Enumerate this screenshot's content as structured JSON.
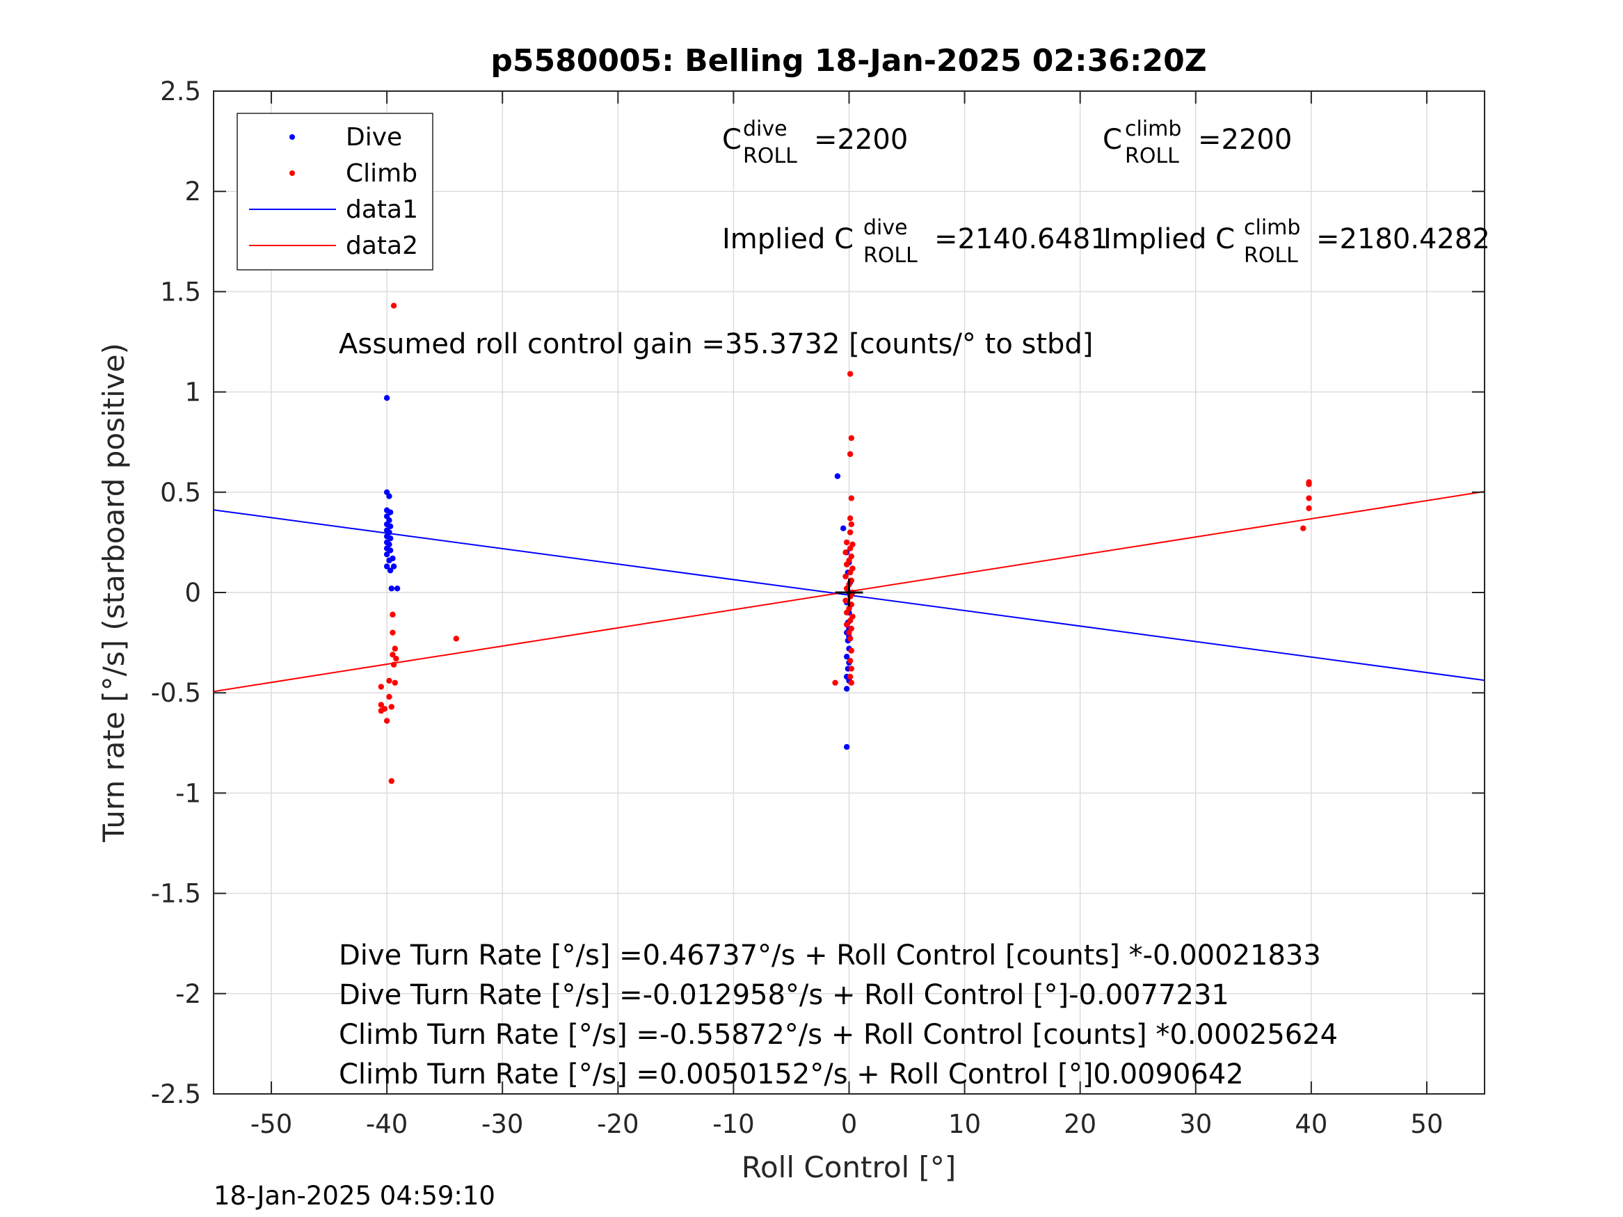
{
  "chart_data": {
    "type": "scatter",
    "title": "p5580005: Belling 18-Jan-2025 02:36:20Z",
    "xlabel": "Roll Control [°]",
    "ylabel": "Turn rate [°/s] (starboard positive)",
    "xlim": [
      -55,
      55
    ],
    "ylim": [
      -2.5,
      2.5
    ],
    "xticks": [
      -50,
      -40,
      -30,
      -20,
      -10,
      0,
      10,
      20,
      30,
      40,
      50
    ],
    "yticks": [
      2.5,
      2,
      1.5,
      1,
      0.5,
      0,
      -0.5,
      -1,
      -1.5,
      -2,
      -2.5
    ],
    "xtick_labels": [
      "-50",
      "-40",
      "-30",
      "-20",
      "-10",
      "0",
      "10",
      "20",
      "30",
      "40",
      "50"
    ],
    "ytick_labels": [
      "2.5",
      "2",
      "1.5",
      "1",
      "0.5",
      "0",
      "-0.5",
      "-1",
      "-1.5",
      "-2",
      "-2.5"
    ],
    "grid": true,
    "legend_position": "top-left",
    "series": [
      {
        "name": "Dive",
        "kind": "points",
        "color": "#0000ff",
        "points": [
          [
            -40,
            0.97
          ],
          [
            -40,
            0.5
          ],
          [
            -39.8,
            0.48
          ],
          [
            -40,
            0.41
          ],
          [
            -39.7,
            0.4
          ],
          [
            -40,
            0.38
          ],
          [
            -39.8,
            0.36
          ],
          [
            -40,
            0.34
          ],
          [
            -39.7,
            0.33
          ],
          [
            -40,
            0.31
          ],
          [
            -39.8,
            0.3
          ],
          [
            -40,
            0.28
          ],
          [
            -39.7,
            0.27
          ],
          [
            -40,
            0.25
          ],
          [
            -39.8,
            0.24
          ],
          [
            -40,
            0.22
          ],
          [
            -39.7,
            0.21
          ],
          [
            -40,
            0.19
          ],
          [
            -39.8,
            0.16
          ],
          [
            -40,
            0.13
          ],
          [
            -39.7,
            0.11
          ],
          [
            -39.5,
            0.17
          ],
          [
            -39.4,
            0.13
          ],
          [
            -39.6,
            0.02
          ],
          [
            -39.1,
            0.02
          ],
          [
            -1,
            0.58
          ],
          [
            -0.5,
            0.32
          ],
          [
            -0.2,
            0.2
          ],
          [
            0,
            0.15
          ],
          [
            -0.1,
            0.1
          ],
          [
            0.1,
            0.05
          ],
          [
            0,
            0.0
          ],
          [
            -0.2,
            -0.05
          ],
          [
            0,
            -0.1
          ],
          [
            -0.1,
            -0.15
          ],
          [
            0,
            -0.18
          ],
          [
            -0.2,
            -0.2
          ],
          [
            0,
            -0.22
          ],
          [
            -0.1,
            -0.24
          ],
          [
            0,
            -0.28
          ],
          [
            -0.2,
            -0.32
          ],
          [
            0,
            -0.35
          ],
          [
            -0.1,
            -0.38
          ],
          [
            -0.2,
            -0.42
          ],
          [
            0,
            -0.44
          ],
          [
            -0.2,
            -0.48
          ],
          [
            -0.2,
            -0.77
          ]
        ]
      },
      {
        "name": "Climb",
        "kind": "points",
        "color": "#ff0000",
        "points": [
          [
            -39.4,
            1.43
          ],
          [
            -39.5,
            -0.11
          ],
          [
            -39.5,
            -0.2
          ],
          [
            -39.3,
            -0.28
          ],
          [
            -39.5,
            -0.31
          ],
          [
            -39.2,
            -0.33
          ],
          [
            -39.4,
            -0.36
          ],
          [
            -40.5,
            -0.47
          ],
          [
            -39.8,
            -0.44
          ],
          [
            -39.8,
            -0.52
          ],
          [
            -39.3,
            -0.45
          ],
          [
            -40.5,
            -0.56
          ],
          [
            -40.2,
            -0.58
          ],
          [
            -39.6,
            -0.57
          ],
          [
            -40.5,
            -0.59
          ],
          [
            -40,
            -0.64
          ],
          [
            -39.6,
            -0.94
          ],
          [
            -34,
            -0.23
          ],
          [
            0.1,
            1.09
          ],
          [
            0.2,
            0.77
          ],
          [
            0.1,
            0.69
          ],
          [
            0.2,
            0.47
          ],
          [
            0.1,
            0.37
          ],
          [
            0.2,
            0.34
          ],
          [
            0.1,
            0.3
          ],
          [
            -0.2,
            0.25
          ],
          [
            0.3,
            0.24
          ],
          [
            0.1,
            0.22
          ],
          [
            -0.3,
            0.2
          ],
          [
            0.2,
            0.18
          ],
          [
            0,
            0.16
          ],
          [
            -0.2,
            0.14
          ],
          [
            0.3,
            0.12
          ],
          [
            0.1,
            0.1
          ],
          [
            -0.3,
            0.08
          ],
          [
            0.2,
            0.06
          ],
          [
            0,
            0.04
          ],
          [
            -0.2,
            0.02
          ],
          [
            0.3,
            0.0
          ],
          [
            0.1,
            -0.02
          ],
          [
            -0.3,
            -0.04
          ],
          [
            0.2,
            -0.06
          ],
          [
            0,
            -0.08
          ],
          [
            -0.2,
            -0.1
          ],
          [
            0.3,
            -0.12
          ],
          [
            0.1,
            -0.14
          ],
          [
            -0.2,
            -0.16
          ],
          [
            0.2,
            -0.18
          ],
          [
            0,
            -0.2
          ],
          [
            0.1,
            -0.23
          ],
          [
            0.2,
            -0.29
          ],
          [
            0.1,
            -0.34
          ],
          [
            0.2,
            -0.38
          ],
          [
            0.1,
            -0.42
          ],
          [
            0.2,
            -0.45
          ],
          [
            -1.2,
            -0.45
          ],
          [
            39.8,
            0.55
          ],
          [
            39.8,
            0.54
          ],
          [
            39.8,
            0.47
          ],
          [
            39.8,
            0.42
          ],
          [
            39.3,
            0.32
          ]
        ]
      },
      {
        "name": "data1",
        "kind": "line",
        "color": "#0000ff",
        "x": [
          -55,
          55
        ],
        "y": [
          0.4118,
          -0.4377
        ]
      },
      {
        "name": "data2",
        "kind": "line",
        "color": "#ff0000",
        "x": [
          -55,
          55
        ],
        "y": [
          -0.4935,
          0.5035
        ]
      }
    ],
    "crosshair": {
      "x": 0,
      "y": 0,
      "half_width": 1.2,
      "half_height": 0.07,
      "color": "#000000"
    }
  },
  "legend": {
    "entries": [
      {
        "label": "Dive",
        "color": "#0000ff",
        "kind": "point"
      },
      {
        "label": "Climb",
        "color": "#ff0000",
        "kind": "point"
      },
      {
        "label": "data1",
        "color": "#0000ff",
        "kind": "line"
      },
      {
        "label": "data2",
        "color": "#ff0000",
        "kind": "line"
      }
    ]
  },
  "annotations": {
    "c_dive": {
      "base": "C",
      "sup": "dive",
      "sub": "ROLL",
      "value": "=2200"
    },
    "c_climb": {
      "base": "C",
      "sup": "climb",
      "sub": "ROLL",
      "value": "=2200"
    },
    "implied_dive": {
      "prefix": "Implied C",
      "sup": "dive",
      "sub": "ROLL",
      "value": "=2140.6481"
    },
    "implied_climb": {
      "prefix": "Implied C",
      "sup": "climb",
      "sub": "ROLL",
      "value": "=2180.4282"
    },
    "gain": "Assumed roll control gain =35.3732 [counts/° to stbd]",
    "equations": [
      "Dive Turn Rate [°/s] =0.46737°/s + Roll Control [counts] *-0.00021833",
      "Dive Turn Rate [°/s] =-0.012958°/s + Roll Control [°]-0.0077231",
      "Climb Turn Rate [°/s] =-0.55872°/s + Roll Control [counts] *0.00025624",
      "Climb Turn Rate [°/s] =0.0050152°/s + Roll Control [°]0.0090642"
    ]
  },
  "footer": {
    "timestamp": "18-Jan-2025 04:59:10"
  }
}
